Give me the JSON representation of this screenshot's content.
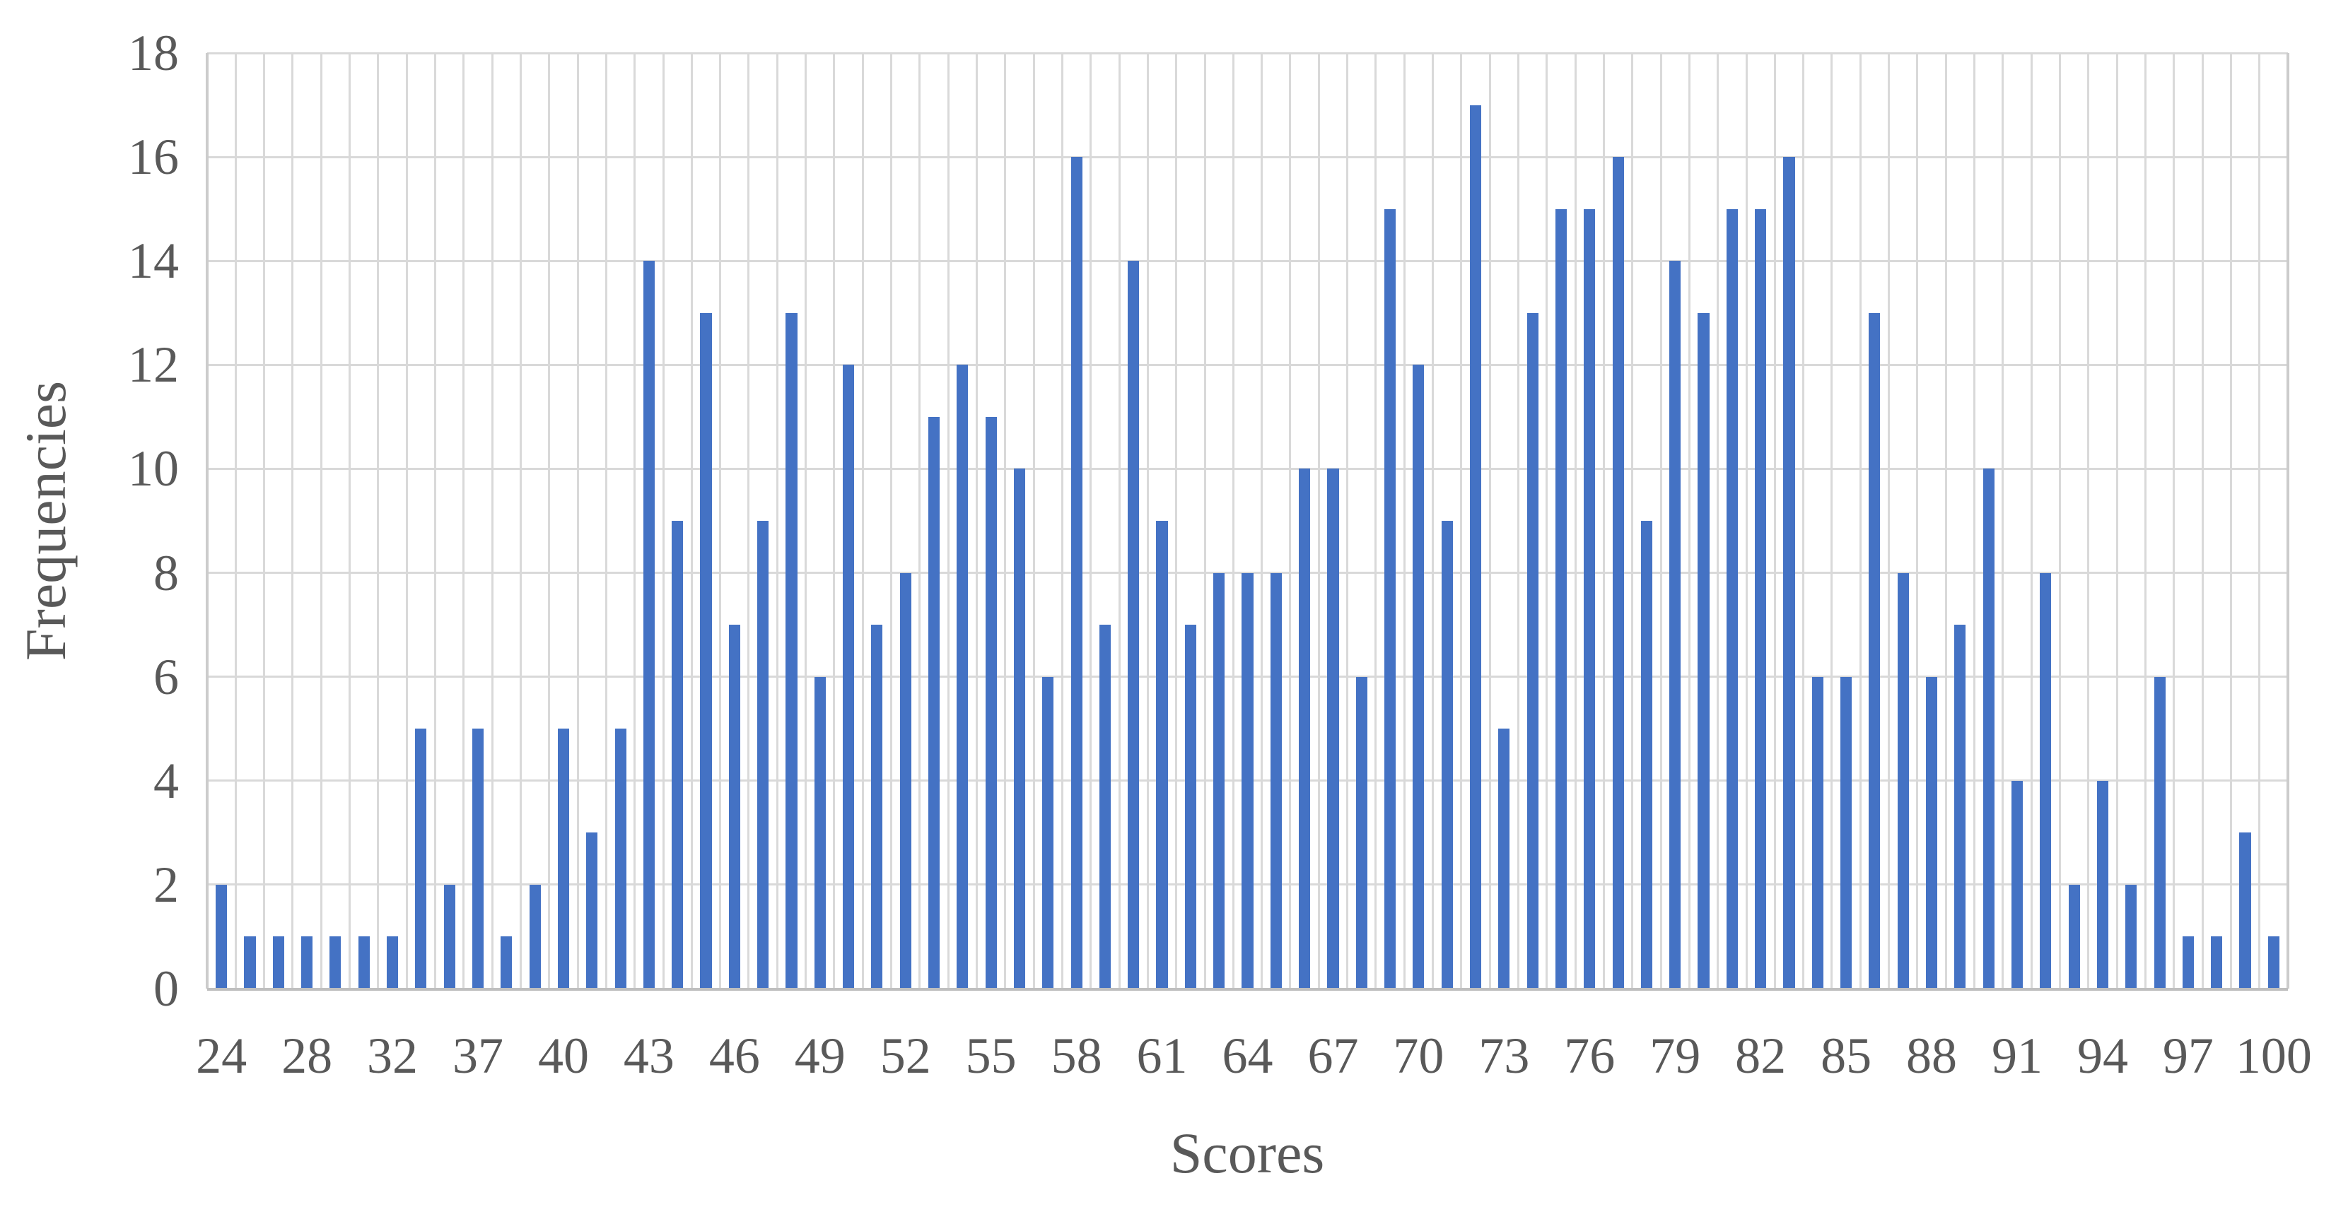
{
  "chart_data": {
    "type": "bar",
    "title": "",
    "xlabel": "Scores",
    "ylabel": "Frequencies",
    "values": [
      2,
      1,
      1,
      1,
      1,
      1,
      1,
      5,
      2,
      5,
      1,
      2,
      5,
      3,
      5,
      14,
      9,
      13,
      7,
      9,
      13,
      6,
      12,
      7,
      8,
      11,
      12,
      11,
      10,
      6,
      16,
      7,
      14,
      9,
      7,
      8,
      8,
      8,
      10,
      10,
      6,
      15,
      12,
      9,
      17,
      5,
      13,
      15,
      15,
      16,
      9,
      14,
      13,
      15,
      15,
      16,
      6,
      6,
      13,
      8,
      6,
      7,
      10,
      4,
      8,
      2,
      4,
      2,
      6,
      1,
      1,
      3,
      1
    ],
    "bar_count": 73,
    "x_tick_labels": [
      "24",
      "28",
      "32",
      "37",
      "40",
      "43",
      "46",
      "49",
      "52",
      "55",
      "58",
      "61",
      "64",
      "67",
      "70",
      "73",
      "76",
      "79",
      "82",
      "85",
      "88",
      "91",
      "94",
      "97",
      "100"
    ],
    "x_tick_every_n_bars": 3,
    "y_tick_labels": [
      "0",
      "2",
      "4",
      "6",
      "8",
      "10",
      "12",
      "14",
      "16",
      "18"
    ],
    "ylim": [
      0,
      18
    ],
    "grid": "both",
    "legend": "none",
    "bar_color": "#4472C4",
    "gridline_color": "#D9D9D9",
    "axis_line_color": "#BFBFBF",
    "text_color": "#595959"
  }
}
